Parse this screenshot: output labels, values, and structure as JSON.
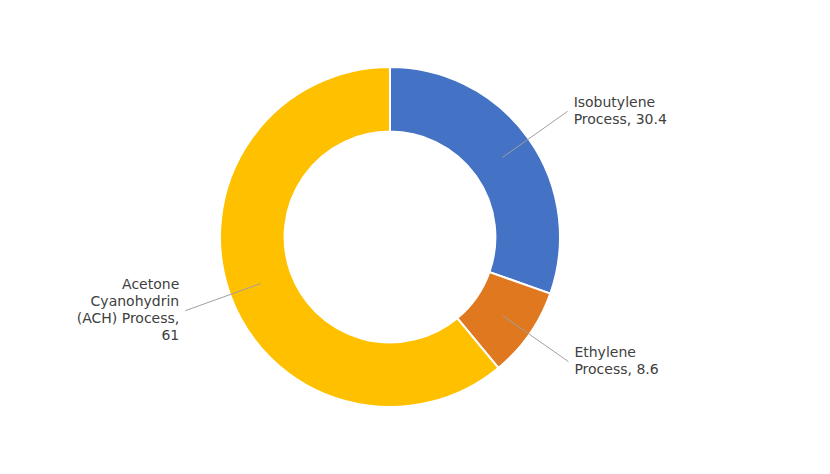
{
  "chart_data": {
    "type": "donut",
    "values": [
      30.4,
      8.6,
      61.0
    ],
    "value_labels": [
      "Isobutylene\nProcess, 30.4",
      "Ethylene\nProcess, 8.6",
      "Acetone\nCyanohydrin\n(ACH) Process,\n61"
    ],
    "colors": [
      "#4472C4",
      "#E07820",
      "#FFC000"
    ],
    "data_labels": true
  }
}
